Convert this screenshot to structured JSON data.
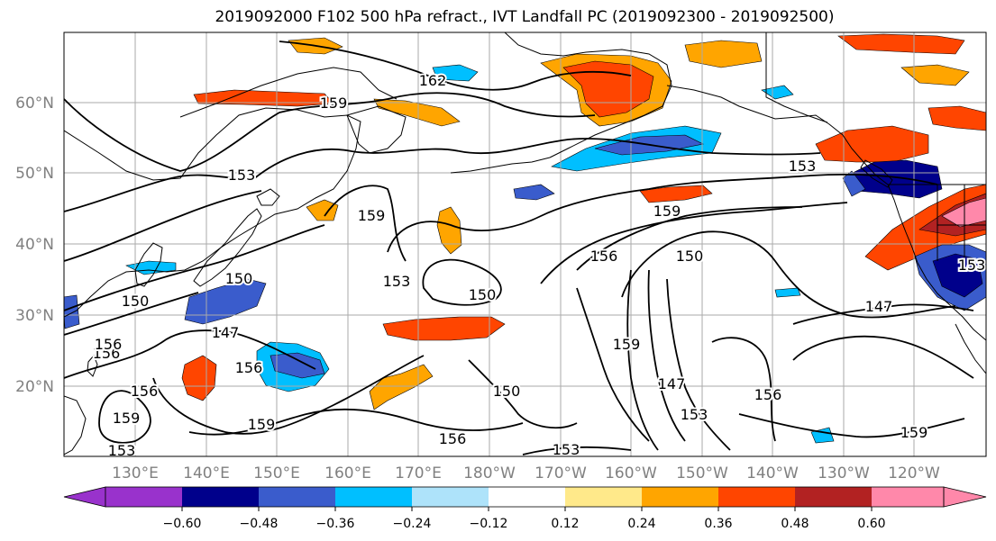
{
  "title": "2019092000 F102 500 hPa refract., IVT Landfall PC (2019092300 - 2019092500)",
  "map": {
    "lat_labels": [
      "60°N",
      "50°N",
      "40°N",
      "30°N",
      "20°N"
    ],
    "lon_labels": [
      "130°E",
      "140°E",
      "150°E",
      "160°E",
      "170°E",
      "180°W",
      "170°W",
      "160°W",
      "150°W",
      "140°W",
      "130°W",
      "120°W"
    ],
    "contour_labels": [
      "162",
      "159",
      "153",
      "159",
      "153",
      "150",
      "153",
      "153",
      "150",
      "159",
      "156",
      "150",
      "147",
      "147",
      "156",
      "159",
      "156",
      "150",
      "156",
      "147",
      "153",
      "156",
      "159",
      "159",
      "153",
      "156",
      "153",
      "159",
      "150",
      "156"
    ],
    "colors": {
      "land_outline": "#000000",
      "grid": "#aaaaaa",
      "contour": "#000000"
    }
  },
  "colorbar": {
    "tick_labels": [
      "−0.60",
      "−0.48",
      "−0.36",
      "−0.24",
      "−0.12",
      "0.12",
      "0.24",
      "0.36",
      "0.48",
      "0.60"
    ],
    "bins": [
      {
        "range": "< -0.60",
        "color": "#9932cc"
      },
      {
        "range": "-0.60 to -0.48",
        "color": "#00008b"
      },
      {
        "range": "-0.48 to -0.36",
        "color": "#3a5ccc"
      },
      {
        "range": "-0.36 to -0.24",
        "color": "#00bfff"
      },
      {
        "range": "-0.24 to -0.12",
        "color": "#aee3fa"
      },
      {
        "range": "-0.12 to 0.12",
        "color": "#ffffff"
      },
      {
        "range": "0.12 to 0.24",
        "color": "#ffe98a"
      },
      {
        "range": "0.24 to 0.36",
        "color": "#ffa500"
      },
      {
        "range": "0.36 to 0.48",
        "color": "#ff4500"
      },
      {
        "range": "0.48 to 0.60",
        "color": "#b22222"
      },
      {
        "range": "> 0.60",
        "color": "#ff88aa"
      }
    ]
  }
}
